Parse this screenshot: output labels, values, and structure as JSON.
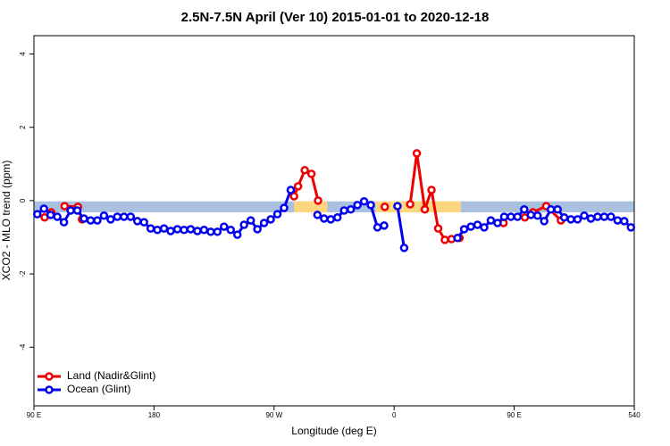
{
  "chart_data": {
    "type": "line",
    "title": "2.5N-7.5N April (Ver 10)   2015-01-01 to 2020-12-18",
    "x_label": "Longitude (deg E)",
    "y_label": "XCO2 - MLO trend (ppm)",
    "xlim": [
      90,
      540
    ],
    "xticks": [
      {
        "value": 90,
        "label": "90 E"
      },
      180,
      {
        "value": 270,
        "label": "90 W"
      },
      {
        "value": 360,
        "label": "0"
      },
      {
        "value": 450,
        "label": "90 E"
      },
      540
    ],
    "ylim": [
      -5.6,
      4.5
    ],
    "yticks": [
      -4,
      -2,
      0,
      2,
      4
    ],
    "legend": "bottom-left",
    "surface_band": {
      "ylim": [
        -0.32,
        -0.02
      ],
      "ocean_color": "#a9c0e0",
      "land_color": "#fdd67f",
      "land_ranges": [
        [
          285,
          310
        ],
        [
          346,
          410
        ]
      ]
    },
    "series": [
      {
        "name": "Land (Nadir&Glint)",
        "color": "#ee0000",
        "x": [
          98,
          103,
          108,
          113,
          123,
          126,
          200,
          285,
          288,
          293,
          298,
          303,
          330,
          353,
          362,
          372,
          377,
          383,
          388,
          393,
          398,
          403,
          409,
          425,
          442,
          450,
          458,
          464,
          474,
          485
        ],
        "values": [
          -0.46,
          -0.32,
          null,
          -0.15,
          -0.17,
          -0.51,
          null,
          0.12,
          0.39,
          0.83,
          0.73,
          0.0,
          null,
          -0.17,
          null,
          -0.1,
          1.29,
          -0.24,
          0.29,
          -0.76,
          -1.07,
          -1.05,
          -1.02,
          null,
          -0.61,
          null,
          -0.46,
          -0.32,
          -0.15,
          -0.54
        ]
      },
      {
        "name": "Ocean (Glint)",
        "color": "#0000ee",
        "x": [
          92.5,
          97.5,
          102.5,
          107.5,
          112.5,
          117.5,
          122.5,
          127.5,
          132.5,
          137.5,
          142.5,
          147.5,
          152.5,
          157.5,
          162.5,
          167.5,
          172.5,
          177.5,
          182.5,
          187.5,
          192.5,
          197.5,
          202.5,
          207.5,
          212.5,
          217.5,
          222.5,
          227.5,
          232.5,
          237.5,
          242.5,
          247.5,
          252.5,
          257.5,
          262.5,
          267.5,
          272.5,
          277.5,
          282.5,
          287.5,
          292.5,
          297.5,
          302.5,
          307.5,
          312.5,
          317.5,
          322.5,
          327.5,
          332.5,
          337.5,
          342.5,
          347.5,
          352.5,
          357.5,
          362.5,
          367.5,
          372.5,
          377.5,
          382.5,
          387.5,
          392.5,
          397.5,
          402.5,
          407.5,
          412.5,
          417.5,
          422.5,
          427.5,
          432.5,
          437.5,
          442.5,
          447.5,
          452.5,
          457.5,
          462.5,
          467.5,
          472.5,
          477.5,
          482.5,
          487.5,
          492.5,
          497.5,
          502.5,
          507.5,
          512.5,
          517.5,
          522.5,
          527.5,
          532.5,
          537.5
        ],
        "values": [
          -0.37,
          -0.22,
          -0.39,
          -0.44,
          -0.59,
          -0.27,
          -0.27,
          -0.49,
          -0.54,
          -0.54,
          -0.41,
          -0.51,
          -0.44,
          -0.44,
          -0.44,
          -0.56,
          -0.59,
          -0.76,
          -0.8,
          -0.76,
          -0.83,
          -0.78,
          -0.8,
          -0.78,
          -0.83,
          -0.8,
          -0.85,
          -0.85,
          -0.71,
          -0.8,
          -0.93,
          -0.66,
          -0.54,
          -0.78,
          -0.61,
          -0.51,
          -0.37,
          -0.2,
          0.29,
          null,
          null,
          null,
          -0.39,
          -0.49,
          -0.51,
          -0.46,
          -0.27,
          -0.24,
          -0.12,
          -0.02,
          -0.12,
          -0.73,
          -0.68,
          null,
          -0.15,
          -1.29,
          null,
          null,
          null,
          null,
          null,
          null,
          null,
          -1.02,
          -0.78,
          -0.71,
          -0.66,
          -0.73,
          -0.54,
          -0.61,
          -0.44,
          -0.44,
          -0.44,
          -0.24,
          -0.39,
          -0.41,
          -0.56,
          -0.24,
          -0.24,
          -0.46,
          -0.51,
          -0.51,
          -0.41,
          -0.49,
          -0.44,
          -0.44,
          -0.44,
          -0.54,
          -0.56,
          -0.73
        ]
      }
    ]
  }
}
